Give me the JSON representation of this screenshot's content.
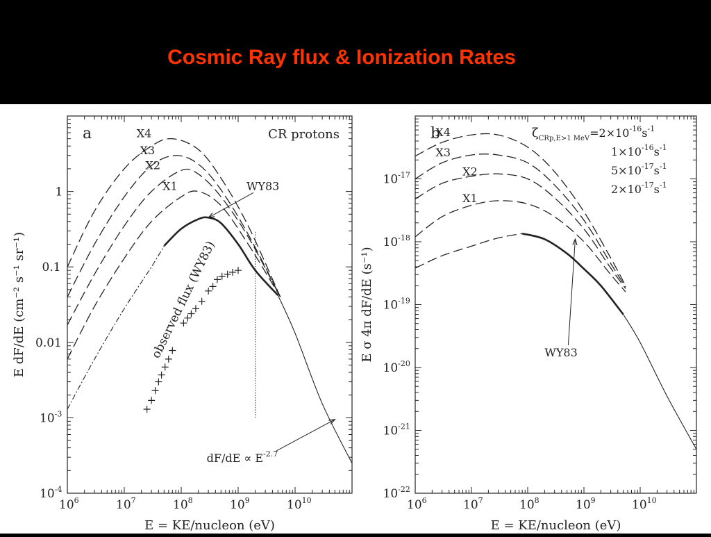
{
  "title": "Cosmic Ray flux & Ionization Rates",
  "colors": {
    "background": "#000000",
    "title": "#ff3300",
    "plot_background": "#ffffff",
    "ink": "#222222"
  },
  "chart_data": [
    {
      "type": "line",
      "panel_letter": "a",
      "corner_label": "CR protons",
      "xlabel": "E = KE/nucleon (eV)",
      "ylabel": "E dF/dE (cm⁻² s⁻¹ sr⁻¹)",
      "xscale": "log",
      "yscale": "log",
      "xlim": [
        1000000.0,
        100000000000.0
      ],
      "ylim": [
        0.0001,
        10
      ],
      "x_ticks": [
        {
          "value": 1000000.0,
          "base": "10",
          "exp": "6"
        },
        {
          "value": 10000000.0,
          "base": "10",
          "exp": "7"
        },
        {
          "value": 100000000.0,
          "base": "10",
          "exp": "8"
        },
        {
          "value": 1000000000.0,
          "base": "10",
          "exp": "9"
        },
        {
          "value": 10000000000.0,
          "base": "10",
          "exp": "10"
        }
      ],
      "y_ticks": [
        {
          "value": 0.0001,
          "base": "10",
          "exp": "-4"
        },
        {
          "value": 0.001,
          "base": "10",
          "exp": "-3"
        },
        {
          "value": 0.01,
          "base": "0.01",
          "exp": ""
        },
        {
          "value": 0.1,
          "base": "0.1",
          "exp": ""
        },
        {
          "value": 1,
          "base": "1",
          "exp": ""
        }
      ],
      "series": [
        {
          "name": "X4",
          "style": "dashed",
          "x": [
            1000000.0,
            3000000.0,
            10000000.0,
            30000000.0,
            70000000.0,
            200000000.0,
            500000000.0,
            1500000000.0,
            5500000000.0
          ],
          "y": [
            0.1,
            0.55,
            2.0,
            4.0,
            5.0,
            3.6,
            1.5,
            0.35,
            0.04
          ]
        },
        {
          "name": "X3",
          "style": "dashed",
          "x": [
            1000000.0,
            3000000.0,
            10000000.0,
            30000000.0,
            80000000.0,
            200000000.0,
            500000000.0,
            1500000000.0,
            5500000000.0
          ],
          "y": [
            0.04,
            0.2,
            0.85,
            2.2,
            3.0,
            2.3,
            1.05,
            0.27,
            0.04
          ]
        },
        {
          "name": "X2",
          "style": "dashed",
          "x": [
            1000000.0,
            3000000.0,
            10000000.0,
            30000000.0,
            100000000.0,
            200000000.0,
            500000000.0,
            1500000000.0,
            5500000000.0
          ],
          "y": [
            0.017,
            0.08,
            0.35,
            1.0,
            1.9,
            1.7,
            0.85,
            0.25,
            0.04
          ]
        },
        {
          "name": "X1",
          "style": "dashed",
          "x": [
            1000000.0,
            3000000.0,
            10000000.0,
            30000000.0,
            100000000.0,
            200000000.0,
            500000000.0,
            1500000000.0,
            5500000000.0
          ],
          "y": [
            0.006,
            0.03,
            0.13,
            0.4,
            0.85,
            1.0,
            0.65,
            0.2,
            0.04
          ]
        },
        {
          "name": "WY83",
          "style": "dotdash",
          "x": [
            1000000.0,
            3000000.0,
            10000000.0,
            30000000.0,
            50000000.0
          ],
          "y": [
            0.0013,
            0.006,
            0.028,
            0.1,
            0.19
          ]
        },
        {
          "name": "WY83",
          "style": "thick",
          "x": [
            50000000.0,
            100000000.0,
            200000000.0,
            300000000.0,
            500000000.0,
            1000000000.0,
            2000000000.0,
            5000000000.0
          ],
          "y": [
            0.19,
            0.32,
            0.43,
            0.45,
            0.38,
            0.2,
            0.09,
            0.042
          ]
        },
        {
          "name": "dF/dE ∝ E^-2.7",
          "style": "thin",
          "x": [
            5000000000.0,
            10000000000.0,
            30000000000.0,
            100000000000.0
          ],
          "y": [
            0.042,
            0.0132,
            0.00154,
            0.00025
          ]
        }
      ],
      "points_label": "observed flux (WY83)",
      "points": {
        "x": [
          25000000.0,
          30000000.0,
          35000000.0,
          40000000.0,
          45000000.0,
          52000000.0,
          60000000.0,
          70000000.0,
          110000000.0,
          130000000.0,
          150000000.0,
          180000000.0,
          230000000.0,
          300000000.0,
          360000000.0,
          430000000.0,
          520000000.0,
          650000000.0,
          800000000.0,
          1000000000.0
        ],
        "y": [
          0.0013,
          0.0017,
          0.0023,
          0.003,
          0.0037,
          0.0047,
          0.006,
          0.0078,
          0.018,
          0.021,
          0.024,
          0.028,
          0.035,
          0.048,
          0.055,
          0.068,
          0.075,
          0.08,
          0.085,
          0.09
        ]
      },
      "vertical_marker": {
        "x": 2000000000.0,
        "y_from": 0.001,
        "y_to": 0.3
      },
      "annotations": [
        {
          "text": "WY83",
          "x": 1400000000.0,
          "y": 1.05,
          "arrow_to_x": 300000000.0,
          "arrow_to_y": 0.45
        },
        {
          "base": "dF/dE ∝ E",
          "exp": "-2.7",
          "x": 280000000.0,
          "y": 0.00026,
          "arrow_to_x": 50000000000.0,
          "arrow_to_y": 0.00095
        }
      ]
    },
    {
      "type": "line",
      "panel_letter": "b",
      "xlabel": "E = KE/nucleon (eV)",
      "ylabel": "E σ 4π dF/dE (s⁻¹)",
      "xscale": "log",
      "yscale": "log",
      "xlim": [
        1000000.0,
        100000000000.0
      ],
      "ylim": [
        1e-22,
        1e-16
      ],
      "x_ticks": [
        {
          "value": 1000000.0,
          "base": "10",
          "exp": "6"
        },
        {
          "value": 10000000.0,
          "base": "10",
          "exp": "7"
        },
        {
          "value": 100000000.0,
          "base": "10",
          "exp": "8"
        },
        {
          "value": 1000000000.0,
          "base": "10",
          "exp": "9"
        },
        {
          "value": 10000000000.0,
          "base": "10",
          "exp": "10"
        }
      ],
      "y_ticks": [
        {
          "value": 1e-22,
          "base": "10",
          "exp": "-22"
        },
        {
          "value": 1e-21,
          "base": "10",
          "exp": "-21"
        },
        {
          "value": 1e-20,
          "base": "10",
          "exp": "-20"
        },
        {
          "value": 1e-19,
          "base": "10",
          "exp": "-19"
        },
        {
          "value": 1e-18,
          "base": "10",
          "exp": "-18"
        },
        {
          "value": 1e-17,
          "base": "10",
          "exp": "-17"
        }
      ],
      "series": [
        {
          "name": "X4",
          "style": "dashed",
          "x": [
            1000000.0,
            3000000.0,
            10000000.0,
            30000000.0,
            100000000.0,
            300000000.0,
            1000000000.0,
            3000000000.0,
            5500000000.0
          ],
          "y": [
            2.3e-17,
            3.8e-17,
            5e-17,
            5e-17,
            3.2e-17,
            1.3e-17,
            3e-18,
            5.5e-19,
            2e-19
          ]
        },
        {
          "name": "X3",
          "style": "dashed",
          "x": [
            1000000.0,
            3000000.0,
            10000000.0,
            30000000.0,
            100000000.0,
            300000000.0,
            1000000000.0,
            3000000000.0,
            5500000000.0
          ],
          "y": [
            1e-17,
            1.8e-17,
            2.4e-17,
            2.4e-17,
            1.8e-17,
            8e-18,
            2.2e-18,
            4.5e-19,
            1.9e-19
          ]
        },
        {
          "name": "X2",
          "style": "dashed",
          "x": [
            1000000.0,
            3000000.0,
            10000000.0,
            30000000.0,
            100000000.0,
            300000000.0,
            1000000000.0,
            3000000000.0,
            5500000000.0
          ],
          "y": [
            4.8e-18,
            8.5e-18,
            1.1e-17,
            1.2e-17,
            1e-17,
            5e-18,
            1.6e-18,
            3.8e-19,
            1.8e-19
          ]
        },
        {
          "name": "X1",
          "style": "dashed",
          "x": [
            1000000.0,
            3000000.0,
            10000000.0,
            30000000.0,
            100000000.0,
            300000000.0,
            1000000000.0,
            3000000000.0,
            5500000000.0
          ],
          "y": [
            1.2e-18,
            2.5e-18,
            3.8e-18,
            4.5e-18,
            4e-18,
            2.5e-18,
            1e-18,
            3e-19,
            1.6e-19
          ]
        },
        {
          "name": "WY83",
          "style": "dashed",
          "x": [
            1000000.0,
            3000000.0,
            10000000.0,
            30000000.0,
            80000000.0
          ],
          "y": [
            3.8e-19,
            6e-19,
            8.5e-19,
            1.15e-18,
            1.35e-18
          ]
        },
        {
          "name": "WY83",
          "style": "thick",
          "x": [
            80000000.0,
            200000000.0,
            500000000.0,
            1000000000.0,
            2000000000.0,
            5000000000.0
          ],
          "y": [
            1.35e-18,
            1.1e-18,
            6.5e-19,
            3.7e-19,
            2e-19,
            7e-20
          ]
        },
        {
          "name": "",
          "style": "thin",
          "x": [
            5000000000.0,
            10000000000.0,
            30000000000.0,
            100000000000.0
          ],
          "y": [
            7e-20,
            2.5e-20,
            3.5e-21,
            5e-22
          ]
        }
      ],
      "legend_lines": [
        {
          "parts": [
            "ζ",
            "CRp,E>1 MeV",
            "=2×10",
            "-16",
            "s",
            "-1"
          ]
        },
        {
          "parts": [
            "",
            "",
            "1×10",
            "-16",
            "s",
            "-1"
          ]
        },
        {
          "parts": [
            "",
            "",
            "5×10",
            "-17",
            "s",
            "-1"
          ]
        },
        {
          "parts": [
            "",
            "",
            "2×10",
            "-17",
            "s",
            "-1"
          ]
        }
      ],
      "annotations": [
        {
          "text": "WY83",
          "x": 200000000.0,
          "y": 1.5e-20,
          "arrow_to_x": 700000000.0,
          "arrow_to_y": 1.1e-18
        }
      ]
    }
  ]
}
